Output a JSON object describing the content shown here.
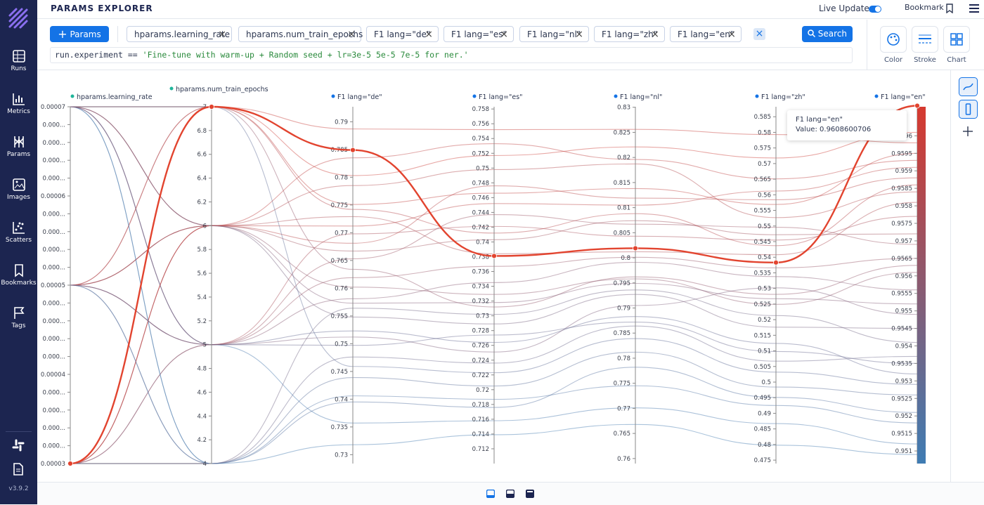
{
  "header": {
    "title": "PARAMS EXPLORER",
    "live_update": "Live Update:",
    "bookmark": "Bookmark"
  },
  "sidebar": {
    "items": [
      "Runs",
      "Metrics",
      "Params",
      "Images",
      "Scatters",
      "Bookmarks",
      "Tags"
    ],
    "version": "v3.9.2"
  },
  "toolbar": {
    "add_button": "Params",
    "chips": [
      "hparams.learning_rate",
      "hparams.num_train_epochs",
      "F1 lang=\"de\"",
      "F1 lang=\"es\"",
      "F1 lang=\"nl\"",
      "F1 lang=\"zh\"",
      "F1 lang=\"en\""
    ],
    "search_button": "Search",
    "controls": [
      "Color",
      "Stroke",
      "Chart"
    ]
  },
  "query": {
    "field": "run.experiment",
    "operator": "==",
    "value": "'Fine-tune with warm-up + Random seed + lr=3e-5 5e-5 7e-5 for ner.'"
  },
  "chart": {
    "color_scale": {
      "low": "#3f7cb3",
      "high": "#d6392f"
    },
    "axes": [
      {
        "label": "hparams.learning_rate",
        "lim": [
          3e-05,
          7e-05
        ],
        "ticks": [
          7e-05,
          {
            "value": 6.8e-05,
            "label": "0.000..."
          },
          {
            "value": 6.6e-05,
            "label": "0.000..."
          },
          {
            "value": 6.4e-05,
            "label": "0.000..."
          },
          {
            "value": 6.2e-05,
            "label": "0.000..."
          },
          6e-05,
          {
            "value": 5.8e-05,
            "label": "0.000..."
          },
          {
            "value": 5.6e-05,
            "label": "0.000..."
          },
          {
            "value": 5.4e-05,
            "label": "0.000..."
          },
          {
            "value": 5.2e-05,
            "label": "0.000..."
          },
          5e-05,
          {
            "value": 4.8e-05,
            "label": "0.000..."
          },
          {
            "value": 4.6e-05,
            "label": "0.000..."
          },
          {
            "value": 4.4e-05,
            "label": "0.000..."
          },
          {
            "value": 4.2e-05,
            "label": "0.000..."
          },
          4e-05,
          {
            "value": 3.8e-05,
            "label": "0.000..."
          },
          {
            "value": 3.6e-05,
            "label": "0.000..."
          },
          {
            "value": 3.4e-05,
            "label": "0.000..."
          },
          {
            "value": 3.2e-05,
            "label": "0.000..."
          },
          3e-05
        ]
      },
      {
        "label": "hparams.num_train_epochs",
        "lim": [
          4,
          7
        ],
        "ticks": [
          7,
          6.8,
          6.6,
          6.4,
          6.2,
          6,
          5.8,
          5.6,
          5.4,
          5.2,
          5,
          4.8,
          4.6,
          4.4,
          4.2,
          4
        ]
      },
      {
        "label": "F1 lang=\"de\"",
        "lim": [
          0.7284,
          0.7927
        ],
        "ticks": [
          0.79,
          0.785,
          0.78,
          0.775,
          0.77,
          0.765,
          0.76,
          0.755,
          0.75,
          0.745,
          0.74,
          0.735,
          0.73
        ]
      },
      {
        "label": "F1 lang=\"es\"",
        "lim": [
          0.71,
          0.7583
        ],
        "ticks": [
          0.758,
          0.756,
          0.754,
          0.752,
          0.75,
          0.748,
          0.746,
          0.744,
          0.742,
          0.74,
          0.738,
          0.736,
          0.734,
          0.732,
          0.73,
          0.728,
          0.726,
          0.724,
          0.722,
          0.72,
          0.718,
          0.716,
          0.714,
          0.712
        ]
      },
      {
        "label": "F1 lang=\"nl\"",
        "lim": [
          0.759,
          0.8301
        ],
        "ticks": [
          0.83,
          0.825,
          0.82,
          0.815,
          0.81,
          0.805,
          0.8,
          0.795,
          0.79,
          0.785,
          0.78,
          0.775,
          0.77,
          0.765,
          0.76
        ]
      },
      {
        "label": "F1 lang=\"zh\"",
        "lim": [
          0.4739,
          0.5882
        ],
        "ticks": [
          0.585,
          0.58,
          0.575,
          0.57,
          0.565,
          0.56,
          0.555,
          0.55,
          0.545,
          0.54,
          0.535,
          0.53,
          0.525,
          0.52,
          0.515,
          0.51,
          0.505,
          0.5,
          0.495,
          0.49,
          0.485,
          0.48,
          0.475
        ]
      },
      {
        "label": "F1 lang=\"en\"",
        "lim": [
          0.95064,
          0.96083
        ],
        "ticks": [
          0.96,
          0.9595,
          0.959,
          0.9585,
          0.958,
          0.9575,
          0.957,
          0.9565,
          0.956,
          0.9555,
          0.955,
          0.9545,
          0.954,
          0.9535,
          0.953,
          0.9525,
          0.952,
          0.9515,
          0.951
        ]
      }
    ],
    "runs": [
      [
        3e-05,
        7,
        0.7849,
        0.7381,
        0.8019,
        0.5383,
        0.9608600706
      ],
      [
        5e-05,
        6,
        0.7712,
        0.7452,
        0.8105,
        0.5612,
        0.9591
      ],
      [
        7e-05,
        5,
        0.7523,
        0.7264,
        0.7883,
        0.5124,
        0.9532
      ],
      [
        3e-05,
        6,
        0.7785,
        0.7498,
        0.8187,
        0.5527,
        0.9584
      ],
      [
        5e-05,
        7,
        0.7634,
        0.7312,
        0.7962,
        0.5281,
        0.9563
      ],
      [
        7e-05,
        4,
        0.7406,
        0.7187,
        0.7745,
        0.4925,
        0.9518
      ],
      [
        3e-05,
        5,
        0.7698,
        0.7421,
        0.8043,
        0.5455,
        0.9577
      ],
      [
        5e-05,
        5,
        0.7581,
        0.7345,
        0.7991,
        0.5338,
        0.9556
      ],
      [
        7e-05,
        6,
        0.7667,
        0.7403,
        0.8074,
        0.5472,
        0.9572
      ],
      [
        3e-05,
        4,
        0.7476,
        0.7236,
        0.7864,
        0.5067,
        0.9537
      ],
      [
        5e-05,
        4,
        0.7439,
        0.7205,
        0.7812,
        0.4984,
        0.9526
      ],
      [
        7e-05,
        7,
        0.7751,
        0.7466,
        0.8138,
        0.5569,
        0.9595
      ],
      [
        3e-05,
        7,
        0.7803,
        0.7517,
        0.8221,
        0.5718,
        0.9601
      ],
      [
        5e-05,
        6,
        0.7548,
        0.7289,
        0.7927,
        0.5176,
        0.9545
      ],
      [
        7e-05,
        5,
        0.7357,
        0.7158,
        0.7701,
        0.4867,
        0.9512
      ],
      [
        3e-05,
        6,
        0.7729,
        0.7384,
        0.8012,
        0.5408,
        0.9581
      ],
      [
        5e-05,
        7,
        0.7887,
        0.7552,
        0.8256,
        0.5793,
        0.9598
      ],
      [
        7e-05,
        6,
        0.7602,
        0.7329,
        0.7958,
        0.5249,
        0.9561
      ],
      [
        3e-05,
        5,
        0.7512,
        0.7251,
        0.7905,
        0.5302,
        0.9549
      ],
      [
        5e-05,
        5,
        0.7653,
        0.7437,
        0.8067,
        0.5496,
        0.9569
      ],
      [
        7e-05,
        4,
        0.7318,
        0.7139,
        0.7668,
        0.4798,
        0.9509
      ],
      [
        3e-05,
        4,
        0.7564,
        0.7302,
        0.7936,
        0.5213,
        0.9541
      ],
      [
        5e-05,
        6,
        0.7681,
        0.7476,
        0.8119,
        0.5584,
        0.9588
      ],
      [
        7e-05,
        7,
        0.7459,
        0.7223,
        0.7839,
        0.5032,
        0.9529
      ],
      [
        3e-05,
        6,
        0.7835,
        0.7533,
        0.8196,
        0.5651,
        0.9593
      ],
      [
        5e-05,
        4,
        0.7395,
        0.7176,
        0.7782,
        0.4951,
        0.9521
      ],
      [
        7e-05,
        5,
        0.7619,
        0.7367,
        0.8001,
        0.5366,
        0.9565
      ],
      [
        3e-05,
        7,
        0.7742,
        0.7412,
        0.8088,
        0.5437,
        0.9586
      ],
      [
        5e-05,
        5,
        0.7497,
        0.7274,
        0.7872,
        0.5098,
        0.9535
      ],
      [
        7e-05,
        6,
        0.7573,
        0.7318,
        0.7949,
        0.5267,
        0.9552
      ]
    ]
  },
  "tooltip": {
    "title": "F1 lang=\"en\"",
    "label": "Value:"
  }
}
